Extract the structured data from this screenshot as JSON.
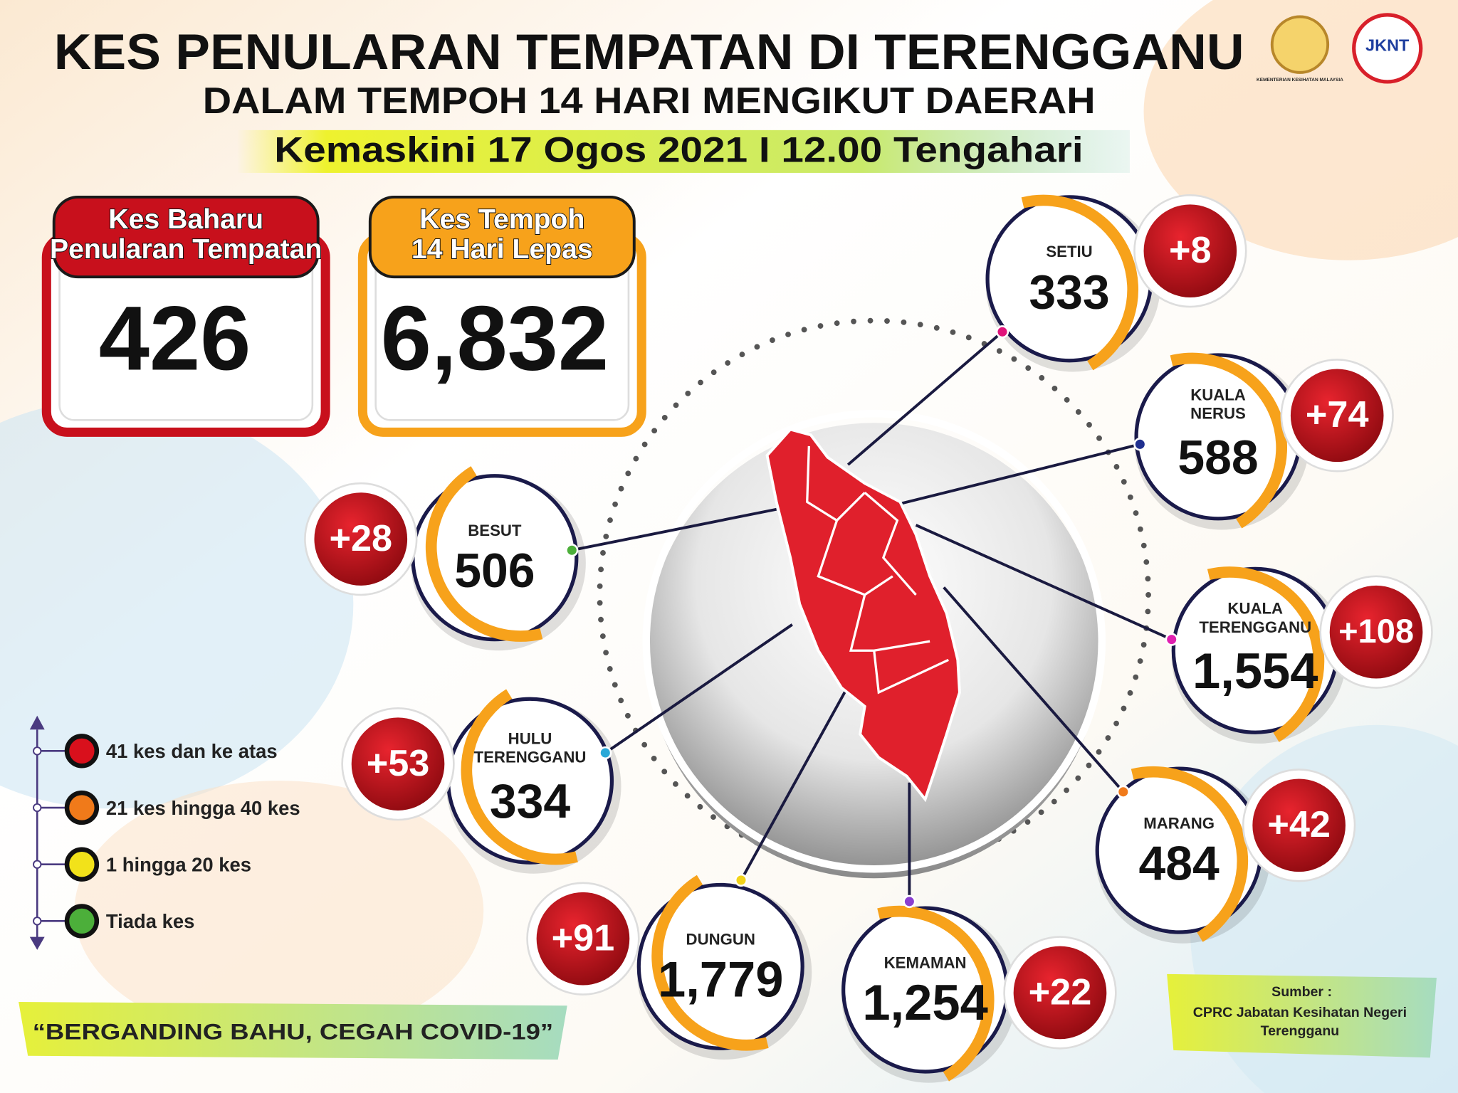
{
  "header": {
    "title": "KES PENULARAN TEMPATAN DI TERENGGANU",
    "subtitle": "DALAM TEMPOH 14 HARI MENGIKUT DAERAH",
    "updated": "Kemaskini 17 Ogos 2021 I 12.00 Tengahari"
  },
  "logos": {
    "ministry": "KEMENTERIAN KESIHATAN MALAYSIA",
    "jknt": "JKNT"
  },
  "summary": [
    {
      "label": [
        "Kes Baharu",
        "Penularan Tempatan"
      ],
      "value": "426",
      "color": "#c8101c"
    },
    {
      "label": [
        "Kes Tempoh",
        "14 Hari Lepas"
      ],
      "value": "6,832",
      "color": "#f7a21b"
    }
  ],
  "districts": [
    {
      "label": [
        "SETIU"
      ],
      "total": "333",
      "new": "+8",
      "dot": "#e0137a"
    },
    {
      "label": [
        "KUALA",
        "NERUS"
      ],
      "total": "588",
      "new": "+74",
      "dot": "#1f2f8f"
    },
    {
      "label": [
        "BESUT"
      ],
      "total": "506",
      "new": "+28",
      "dot": "#4caf3a"
    },
    {
      "label": [
        "KUALA",
        "TERENGGANU"
      ],
      "total": "1,554",
      "new": "+108",
      "dot": "#e01fb0"
    },
    {
      "label": [
        "HULU",
        "TERENGGANU"
      ],
      "total": "334",
      "new": "+53",
      "dot": "#2aa8d8"
    },
    {
      "label": [
        "MARANG"
      ],
      "total": "484",
      "new": "+42",
      "dot": "#f07a1a"
    },
    {
      "label": [
        "DUNGUN"
      ],
      "total": "1,779",
      "new": "+91",
      "dot": "#f2d31a"
    },
    {
      "label": [
        "KEMAMAN"
      ],
      "total": "1,254",
      "new": "+22",
      "dot": "#8a3fd0"
    }
  ],
  "legend": [
    {
      "text": "41 kes dan ke atas",
      "color": "#d9101c"
    },
    {
      "text": "21 kes hingga 40 kes",
      "color": "#f07a1a"
    },
    {
      "text": "1 hingga 20 kes",
      "color": "#f2e21a"
    },
    {
      "text": "Tiada kes",
      "color": "#4caf3a"
    }
  ],
  "slogan": "“BERGANDING BAHU, CEGAH COVID-19”",
  "source": {
    "heading": "Sumber :",
    "lines": [
      "CPRC Jabatan Kesihatan Negeri",
      "Terengganu"
    ]
  }
}
